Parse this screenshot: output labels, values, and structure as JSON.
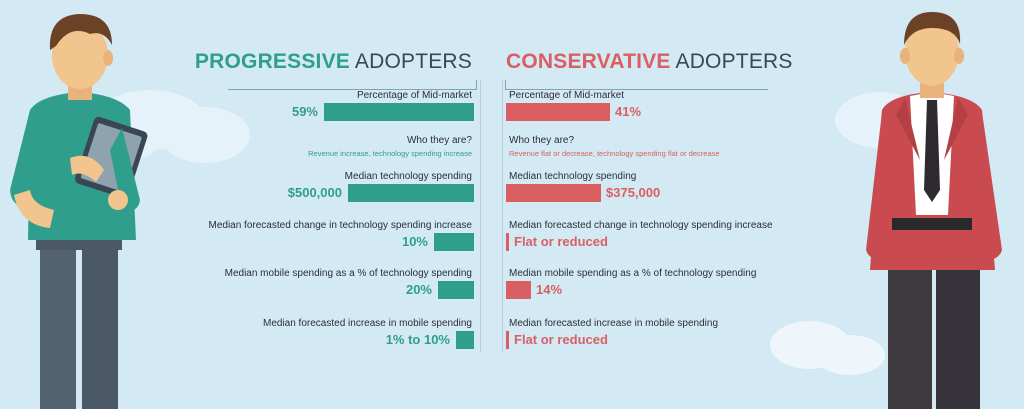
{
  "colors": {
    "background": "#d3e9f4",
    "progressive": "#2f9e8c",
    "conservative": "#d95f63",
    "text": "#2b2f36"
  },
  "chart_data": {
    "type": "bar",
    "legend": "none",
    "grid": false,
    "groups": {
      "progressive": {
        "title_highlight": "PROGRESSIVE",
        "title_rest": " ADOPTERS"
      },
      "conservative": {
        "title_highlight": "CONSERVATIVE",
        "title_rest": " ADOPTERS"
      }
    },
    "rows": [
      {
        "label": "Percentage of Mid-market",
        "progressive": {
          "text": "59%",
          "value": 59
        },
        "conservative": {
          "text": "41%",
          "value": 41
        }
      },
      {
        "label": "Who they are?",
        "progressive": {
          "subtext": "Revenue increase, technology spending increase"
        },
        "conservative": {
          "subtext": "Revenue flat or decrease, technology spending flat or decrease"
        }
      },
      {
        "label": "Median technology spending",
        "progressive": {
          "text": "$500,000",
          "value": 500000
        },
        "conservative": {
          "text": "$375,000",
          "value": 375000
        }
      },
      {
        "label": "Median forecasted change in technology spending increase",
        "progressive": {
          "text": "10%",
          "value": 10
        },
        "conservative": {
          "text": "Flat or reduced",
          "value": 0
        }
      },
      {
        "label": "Median mobile spending as a % of technology spending",
        "progressive": {
          "text": "20%",
          "value": 20
        },
        "conservative": {
          "text": "14%",
          "value": 14
        }
      },
      {
        "label": "Median forecasted increase in mobile spending",
        "progressive": {
          "text": "1% to 10%",
          "value": 10
        },
        "conservative": {
          "text": "Flat or reduced",
          "value": 0
        }
      }
    ]
  },
  "illustrations": {
    "left": "man-with-tablet-icon",
    "right": "man-in-red-blazer-icon",
    "decor": "cloud-icon"
  }
}
